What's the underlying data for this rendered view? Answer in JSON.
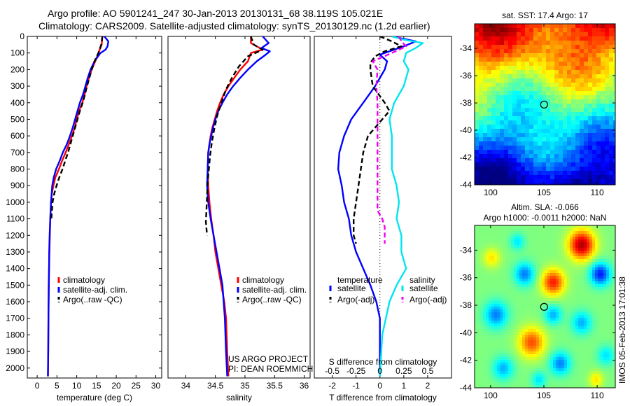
{
  "header": {
    "line1": "Argo profile: AO 5901241_247 30-Jan-2013 20130131_68 38.119S 105.021E",
    "line2": "Climatology: CARS2009. Satellite-adjusted climatology: synTS_20130129.nc (1.2d earlier)"
  },
  "credit": {
    "line1": "US ARGO PROJECT",
    "line2": "PI: DEAN ROEMMICH"
  },
  "side_note": "IMOS 05-Feb-2013 17:01:38",
  "colors": {
    "climatology": "#ff0000",
    "satellite": "#0000ff",
    "argo": "#000000",
    "sal_satellite": "#00e5ee",
    "sal_argo": "#ee00ee"
  },
  "chart_data": [
    {
      "type": "line",
      "name": "temperature profile",
      "xlabel": "temperature (deg C)",
      "ylabel": "",
      "xlim": [
        -2.5,
        31.5
      ],
      "ylim": [
        0,
        2060
      ],
      "y_reversed": true,
      "xticks": [
        0,
        5,
        10,
        15,
        20,
        25,
        30
      ],
      "yticks": [
        0,
        100,
        200,
        300,
        400,
        500,
        600,
        700,
        800,
        900,
        1000,
        1100,
        1200,
        1300,
        1400,
        1500,
        1600,
        1700,
        1800,
        1900,
        2000
      ],
      "legend": {
        "location": "lower-center",
        "entries": [
          "climatology",
          "satellite-adj. clim.",
          "Argo(..raw -QC)"
        ]
      },
      "series": [
        {
          "name": "climatology",
          "color": "#ff0000",
          "style": "solid",
          "x": [
            16.5,
            16.3,
            15.5,
            14.7,
            13.8,
            13.1,
            12.5,
            12,
            11.4,
            10.6,
            10,
            9.5,
            8.8,
            8,
            7.2,
            6.3,
            5.5,
            4.6,
            4.1,
            3.7,
            3.5,
            3.3,
            3.2,
            3.1,
            3,
            2.9,
            2.85,
            2.8,
            2.75
          ],
          "y": [
            0,
            50,
            100,
            150,
            200,
            250,
            300,
            350,
            400,
            450,
            500,
            550,
            600,
            650,
            700,
            750,
            800,
            850,
            900,
            950,
            1000,
            1100,
            1200,
            1300,
            1400,
            1500,
            1700,
            1900,
            2050
          ]
        },
        {
          "name": "satellite-adj. clim.",
          "color": "#0000ff",
          "style": "solid",
          "x": [
            17,
            18,
            17.8,
            17.3,
            16,
            14.5,
            13.5,
            12.8,
            12.2,
            11.6,
            10.8,
            10.2,
            9.6,
            9,
            8.3,
            7.5,
            6.5,
            5.7,
            4.8,
            4.2,
            3.8,
            3.5,
            3.3,
            3.15,
            3.05,
            2.95,
            2.85,
            2.8,
            2.7
          ],
          "y": [
            0,
            30,
            60,
            80,
            100,
            150,
            200,
            250,
            300,
            350,
            400,
            450,
            500,
            550,
            600,
            650,
            700,
            750,
            800,
            850,
            900,
            1000,
            1100,
            1200,
            1300,
            1500,
            1700,
            1900,
            2050
          ]
        },
        {
          "name": "Argo(..raw -QC)",
          "color": "#000000",
          "style": "dashed",
          "x": [
            16.5,
            16.2,
            15.5,
            14.5,
            13.8,
            13.2,
            12.6,
            12.1,
            11.5,
            10.8,
            10.2,
            9.6,
            9,
            8.4,
            7.8,
            7.1,
            6.4,
            5.6,
            4.9,
            4.3,
            3.9,
            3.6
          ],
          "y": [
            0,
            50,
            100,
            150,
            200,
            250,
            300,
            350,
            400,
            450,
            500,
            550,
            600,
            650,
            700,
            750,
            800,
            850,
            900,
            950,
            1000,
            1100
          ]
        }
      ]
    },
    {
      "type": "line",
      "name": "salinity profile",
      "xlabel": "salinity",
      "xlim": [
        33.7,
        36.1
      ],
      "ylim": [
        0,
        2060
      ],
      "y_reversed": true,
      "xticks": [
        34,
        34.5,
        35,
        35.5,
        36
      ],
      "legend": {
        "location": "lower-center",
        "entries": [
          "climatology",
          "satellite-adj. clim.",
          "Argo(..raw -QC)"
        ]
      },
      "series": [
        {
          "name": "climatology",
          "color": "#ff0000",
          "style": "solid",
          "x": [
            35.1,
            35.1,
            35.3,
            35.1,
            35.05,
            34.92,
            34.82,
            34.72,
            34.64,
            34.58,
            34.53,
            34.49,
            34.45,
            34.42,
            34.4,
            34.38,
            34.37,
            34.38,
            34.4,
            34.43,
            34.47,
            34.5,
            34.55,
            34.6,
            34.65,
            34.68,
            34.7,
            34.72
          ],
          "y": [
            0,
            40,
            80,
            100,
            150,
            200,
            250,
            300,
            350,
            400,
            450,
            500,
            550,
            600,
            650,
            700,
            800,
            900,
            1000,
            1100,
            1200,
            1300,
            1400,
            1500,
            1600,
            1700,
            1900,
            2050
          ]
        },
        {
          "name": "satellite-adj. clim.",
          "color": "#0000ff",
          "style": "solid",
          "x": [
            35.3,
            35.4,
            35.28,
            35.42,
            35.35,
            35.2,
            35.05,
            34.92,
            34.8,
            34.7,
            34.62,
            34.55,
            34.5,
            34.46,
            34.43,
            34.4,
            34.38,
            34.37,
            34.36,
            34.38,
            34.42,
            34.47,
            34.52,
            34.57,
            34.62,
            34.66,
            34.68,
            34.7
          ],
          "y": [
            0,
            40,
            70,
            90,
            110,
            150,
            200,
            250,
            300,
            350,
            400,
            450,
            500,
            550,
            600,
            650,
            700,
            800,
            900,
            1000,
            1100,
            1200,
            1300,
            1400,
            1500,
            1700,
            1900,
            2050
          ]
        },
        {
          "name": "Argo(..raw -QC)",
          "color": "#000000",
          "style": "dashed",
          "x": [
            35.1,
            35.15,
            35.3,
            35.05,
            34.9,
            34.78,
            34.68,
            34.6,
            34.53,
            34.48,
            34.44,
            34.41,
            34.39,
            34.37,
            34.36,
            34.35,
            34.34,
            34.36
          ],
          "y": [
            0,
            50,
            80,
            120,
            180,
            250,
            320,
            400,
            480,
            560,
            640,
            720,
            800,
            880,
            960,
            1040,
            1120,
            1200
          ]
        }
      ]
    },
    {
      "type": "line",
      "name": "difference from climatology",
      "xlabel": "T difference from climatology",
      "xlabel_top": "S difference from climatology",
      "xlim": [
        -2.75,
        3.0
      ],
      "ylim": [
        0,
        2060
      ],
      "y_reversed": true,
      "xticks": [
        -2,
        -1,
        0,
        1,
        2
      ],
      "xticks_top": [
        "-0.5",
        "-0.25",
        "0",
        "0.25",
        "0.5"
      ],
      "legend": {
        "location": "lower-center",
        "groups": [
          {
            "title": "temperature",
            "entries": [
              "satellite",
              "Argo(-adj)"
            ]
          },
          {
            "title": "salinity",
            "entries": [
              "satellite",
              "Argo(-adj)"
            ]
          }
        ]
      },
      "series": [
        {
          "name": "satellite",
          "group": "temperature",
          "color": "#0000ff",
          "style": "solid",
          "x": [
            0.5,
            1.5,
            1.0,
            0.4,
            0,
            0.3,
            0.2,
            -0.2,
            -0.7,
            -1.2,
            -1.5,
            -1.7,
            -1.75,
            -1.6,
            -1.5,
            -1.4,
            -1.3,
            -1.2,
            -1.0,
            -0.7,
            -0.4,
            -0.15,
            0,
            0,
            0
          ],
          "y": [
            0,
            30,
            60,
            90,
            110,
            150,
            200,
            300,
            400,
            500,
            600,
            700,
            800,
            900,
            1000,
            1050,
            1100,
            1200,
            1300,
            1400,
            1500,
            1600,
            1700,
            1900,
            2050
          ]
        },
        {
          "name": "Argo(-adj)",
          "group": "temperature",
          "color": "#000000",
          "style": "dashed",
          "x": [
            0,
            0.5,
            0.9,
            0.2,
            -0.2,
            -0.4,
            -0.4,
            -0.3,
            0.2,
            0.4,
            0.1,
            -0.2,
            -0.5,
            -0.7,
            -0.8,
            -0.9,
            -1.0,
            -1.1,
            -1.1,
            -1.0
          ],
          "y": [
            0,
            30,
            60,
            90,
            120,
            160,
            200,
            300,
            400,
            450,
            500,
            550,
            600,
            700,
            800,
            900,
            1000,
            1100,
            1200,
            1250
          ]
        },
        {
          "name": "satellite",
          "group": "salinity",
          "color": "#00e5ee",
          "style": "solid",
          "x": [
            0.5,
            1.0,
            1.8,
            1.5,
            1.1,
            1.0,
            1.2,
            1.0,
            0.6,
            0.4,
            0.5,
            0.5,
            0.5,
            0.7,
            0.8,
            0.7,
            0.9,
            0.9,
            1.1,
            0.7,
            0.4,
            0.1,
            0
          ],
          "y": [
            0,
            20,
            40,
            70,
            100,
            150,
            200,
            300,
            400,
            500,
            600,
            700,
            800,
            900,
            1000,
            1100,
            1200,
            1300,
            1400,
            1500,
            1600,
            1800,
            2050
          ]
        },
        {
          "name": "Argo(-adj)",
          "group": "salinity",
          "color": "#ee00ee",
          "style": "dashed",
          "x": [
            0.8,
            0.9,
            1.1,
            0.5,
            -0.3,
            -0.1,
            -0.15,
            -0.1,
            -0.1,
            -0.1,
            -0.1,
            -0.1,
            -0.1,
            0.1,
            0.2,
            0.2,
            0.2
          ],
          "y": [
            0,
            30,
            60,
            100,
            150,
            200,
            300,
            400,
            600,
            800,
            900,
            1000,
            1050,
            1100,
            1150,
            1200,
            1250
          ]
        }
      ]
    },
    {
      "type": "heatmap",
      "name": "satellite SST map",
      "title": "sat. SST: 17.4 Argo: 17",
      "xlim": [
        98.5,
        111.7
      ],
      "ylim": [
        -44,
        -32.2
      ],
      "xticks": [
        100,
        105,
        110
      ],
      "yticks": [
        -34,
        -36,
        -38,
        -40,
        -42,
        -44
      ],
      "colormap": "jet",
      "marker": {
        "x": 105.021,
        "y": -38.119
      }
    },
    {
      "type": "heatmap",
      "name": "altimetry SLA map",
      "title_line1": "Altim. SLA: -0.066",
      "title_line2": "Argo h1000: -0.0011 h2000: NaN",
      "xlim": [
        98.5,
        111.7
      ],
      "ylim": [
        -44,
        -32.2
      ],
      "xticks": [
        100,
        105,
        110
      ],
      "yticks": [
        -34,
        -36,
        -38,
        -40,
        -42,
        -44
      ],
      "colormap": "jet",
      "marker": {
        "x": 105.021,
        "y": -38.119
      }
    }
  ]
}
